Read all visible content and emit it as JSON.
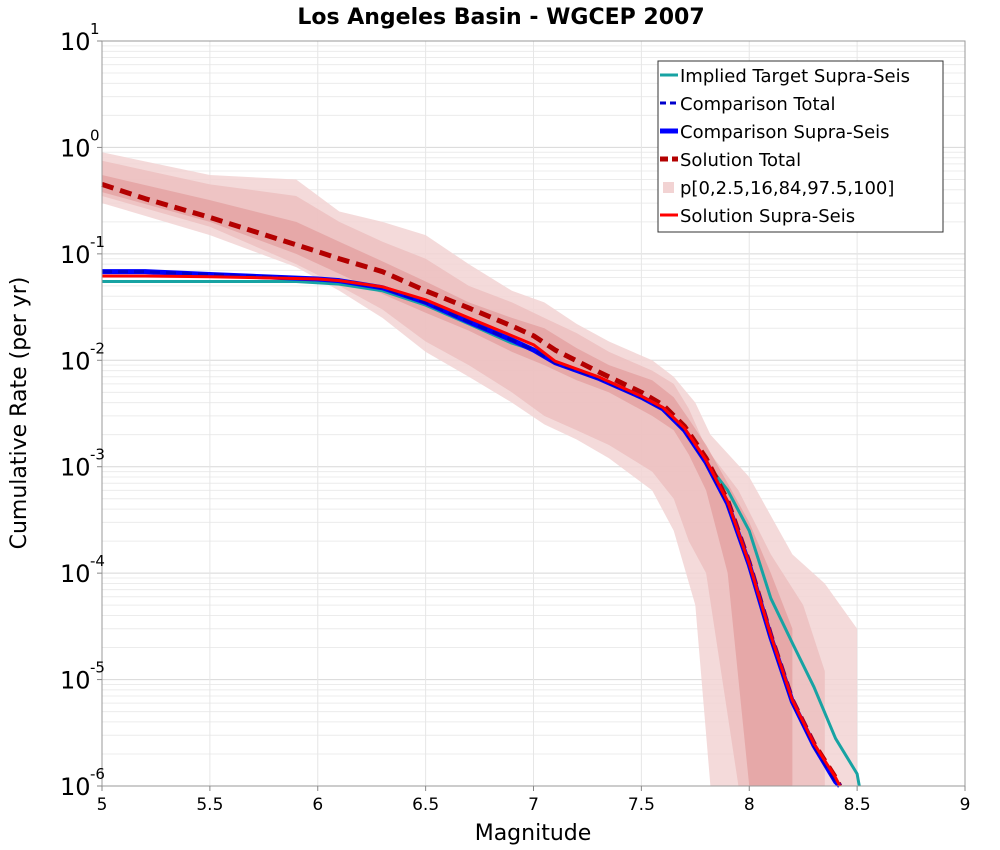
{
  "chart_data": {
    "type": "line",
    "title": "Los Angeles Basin - WGCEP 2007",
    "xlabel": "Magnitude",
    "ylabel": "Cumulative Rate (per yr)",
    "xlim": [
      5,
      9
    ],
    "ylim": [
      1e-06,
      10
    ],
    "yscale": "log",
    "grid": true,
    "legend_position": "top-right",
    "x_ticks": [
      "5",
      "5.5",
      "6",
      "6.5",
      "7",
      "7.5",
      "8",
      "8.5",
      "9"
    ],
    "y_ticks": [
      {
        "base": "10",
        "exp": "1"
      },
      {
        "base": "10",
        "exp": "0"
      },
      {
        "base": "10",
        "exp": "-1"
      },
      {
        "base": "10",
        "exp": "-2"
      },
      {
        "base": "10",
        "exp": "-3"
      },
      {
        "base": "10",
        "exp": "-4"
      },
      {
        "base": "10",
        "exp": "-5"
      },
      {
        "base": "10",
        "exp": "-6"
      }
    ],
    "bands": [
      {
        "label": "p0-p100",
        "color": "#f2d3d3",
        "points": [
          [
            5,
            0.3,
            0.9
          ],
          [
            5.5,
            0.15,
            0.55
          ],
          [
            5.9,
            0.075,
            0.5
          ],
          [
            6.1,
            0.045,
            0.25
          ],
          [
            6.3,
            0.025,
            0.2
          ],
          [
            6.5,
            0.012,
            0.15
          ],
          [
            6.7,
            0.007,
            0.08
          ],
          [
            6.9,
            0.004,
            0.045
          ],
          [
            7.05,
            0.0025,
            0.035
          ],
          [
            7.2,
            0.0018,
            0.022
          ],
          [
            7.35,
            0.0012,
            0.015
          ],
          [
            7.55,
            0.0006,
            0.01
          ],
          [
            7.65,
            0.00025,
            0.007
          ],
          [
            7.75,
            5e-05,
            0.004
          ],
          [
            7.82,
            1e-06,
            0.002
          ],
          [
            8.0,
            1e-06,
            0.0008
          ],
          [
            8.2,
            1e-06,
            0.00015
          ],
          [
            8.35,
            1e-06,
            8e-05
          ],
          [
            8.5,
            1e-06,
            3e-05
          ]
        ]
      },
      {
        "label": "p2.5-p97.5",
        "color": "#ecbfbf",
        "points": [
          [
            5,
            0.35,
            0.75
          ],
          [
            5.5,
            0.18,
            0.45
          ],
          [
            5.9,
            0.08,
            0.35
          ],
          [
            6.1,
            0.05,
            0.2
          ],
          [
            6.3,
            0.03,
            0.13
          ],
          [
            6.5,
            0.015,
            0.09
          ],
          [
            6.7,
            0.009,
            0.05
          ],
          [
            6.9,
            0.005,
            0.035
          ],
          [
            7.05,
            0.003,
            0.025
          ],
          [
            7.2,
            0.0022,
            0.018
          ],
          [
            7.35,
            0.0016,
            0.012
          ],
          [
            7.55,
            0.0009,
            0.008
          ],
          [
            7.65,
            0.0005,
            0.006
          ],
          [
            7.72,
            0.0002,
            0.0035
          ],
          [
            7.8,
            0.0001,
            0.0015
          ],
          [
            7.95,
            1e-06,
            0.0006
          ],
          [
            8.1,
            1e-06,
            0.00015
          ],
          [
            8.25,
            1e-06,
            5e-05
          ],
          [
            8.35,
            1e-06,
            1.2e-05
          ]
        ]
      },
      {
        "label": "p16-p84",
        "color": "#e4a3a3",
        "points": [
          [
            5,
            0.38,
            0.55
          ],
          [
            5.5,
            0.2,
            0.32
          ],
          [
            5.9,
            0.1,
            0.2
          ],
          [
            6.1,
            0.065,
            0.13
          ],
          [
            6.3,
            0.042,
            0.085
          ],
          [
            6.5,
            0.028,
            0.055
          ],
          [
            6.7,
            0.019,
            0.035
          ],
          [
            6.9,
            0.012,
            0.025
          ],
          [
            7.05,
            0.009,
            0.02
          ],
          [
            7.2,
            0.0065,
            0.013
          ],
          [
            7.35,
            0.005,
            0.009
          ],
          [
            7.55,
            0.003,
            0.0065
          ],
          [
            7.65,
            0.0022,
            0.0045
          ],
          [
            7.72,
            0.0013,
            0.0028
          ],
          [
            7.8,
            0.0006,
            0.0016
          ],
          [
            7.9,
            0.0001,
            0.0007
          ],
          [
            8.0,
            1e-06,
            0.0003
          ],
          [
            8.1,
            1e-06,
            0.0001
          ],
          [
            8.2,
            1e-06,
            3e-05
          ]
        ]
      }
    ],
    "series": [
      {
        "name": "Implied Target Supra-Seis",
        "color": "#17a3a3",
        "width": 3,
        "dash": "",
        "points": [
          [
            5,
            0.055
          ],
          [
            5.5,
            0.055
          ],
          [
            5.8,
            0.055
          ],
          [
            5.9,
            0.055
          ],
          [
            6.1,
            0.052
          ],
          [
            6.3,
            0.045
          ],
          [
            6.5,
            0.033
          ],
          [
            6.7,
            0.022
          ],
          [
            6.9,
            0.0145
          ],
          [
            7.0,
            0.0125
          ],
          [
            7.1,
            0.0095
          ],
          [
            7.3,
            0.007
          ],
          [
            7.5,
            0.0045
          ],
          [
            7.6,
            0.0035
          ],
          [
            7.7,
            0.0022
          ],
          [
            7.8,
            0.0011
          ],
          [
            7.9,
            0.0006
          ],
          [
            8.0,
            0.00025
          ],
          [
            8.1,
            5.8e-05
          ],
          [
            8.2,
            2.2e-05
          ],
          [
            8.3,
            8.5e-06
          ],
          [
            8.4,
            2.8e-06
          ],
          [
            8.5,
            1.3e-06
          ],
          [
            8.51,
            1e-06
          ]
        ]
      },
      {
        "name": "Comparison Total",
        "color": "#0000cc",
        "width": 3,
        "dash": "10,6",
        "points": [
          [
            5,
            0.068
          ],
          [
            5.2,
            0.068
          ],
          [
            5.5,
            0.064
          ],
          [
            6.0,
            0.058
          ],
          [
            6.1,
            0.056
          ],
          [
            6.3,
            0.048
          ],
          [
            6.5,
            0.035
          ],
          [
            6.7,
            0.023
          ],
          [
            6.9,
            0.0155
          ],
          [
            7.0,
            0.0125
          ],
          [
            7.1,
            0.0095
          ],
          [
            7.3,
            0.0068
          ],
          [
            7.5,
            0.0045
          ],
          [
            7.6,
            0.0035
          ],
          [
            7.7,
            0.0022
          ],
          [
            7.8,
            0.0011
          ],
          [
            7.9,
            0.00045
          ],
          [
            8.0,
            0.00012
          ],
          [
            8.1,
            2.5e-05
          ],
          [
            8.2,
            6.2e-06
          ],
          [
            8.3,
            2.4e-06
          ],
          [
            8.4,
            1.1e-06
          ],
          [
            8.42,
            1e-06
          ]
        ]
      },
      {
        "name": "Comparison Supra-Seis",
        "color": "#0000ff",
        "width": 5,
        "dash": "",
        "points": [
          [
            5,
            0.068
          ],
          [
            5.2,
            0.068
          ],
          [
            5.5,
            0.064
          ],
          [
            6.0,
            0.058
          ],
          [
            6.1,
            0.056
          ],
          [
            6.3,
            0.048
          ],
          [
            6.5,
            0.035
          ],
          [
            6.7,
            0.023
          ],
          [
            6.9,
            0.0155
          ],
          [
            7.0,
            0.0125
          ],
          [
            7.1,
            0.0095
          ],
          [
            7.3,
            0.0068
          ],
          [
            7.5,
            0.0045
          ],
          [
            7.6,
            0.0035
          ],
          [
            7.7,
            0.0022
          ],
          [
            7.8,
            0.0011
          ],
          [
            7.9,
            0.00045
          ],
          [
            8.0,
            0.00012
          ],
          [
            8.1,
            2.5e-05
          ],
          [
            8.2,
            6.2e-06
          ],
          [
            8.3,
            2.4e-06
          ],
          [
            8.4,
            1.1e-06
          ],
          [
            8.42,
            1e-06
          ]
        ]
      },
      {
        "name": "Solution Total",
        "color": "#b30000",
        "width": 5,
        "dash": "12,7",
        "points": [
          [
            5,
            0.45
          ],
          [
            5.2,
            0.33
          ],
          [
            5.5,
            0.22
          ],
          [
            6.0,
            0.105
          ],
          [
            6.1,
            0.09
          ],
          [
            6.3,
            0.068
          ],
          [
            6.5,
            0.045
          ],
          [
            6.7,
            0.031
          ],
          [
            6.9,
            0.021
          ],
          [
            7.0,
            0.017
          ],
          [
            7.1,
            0.0125
          ],
          [
            7.3,
            0.0078
          ],
          [
            7.5,
            0.005
          ],
          [
            7.6,
            0.0038
          ],
          [
            7.7,
            0.0024
          ],
          [
            7.8,
            0.0012
          ],
          [
            7.9,
            0.00048
          ],
          [
            8.0,
            0.000125
          ],
          [
            8.1,
            2.6e-05
          ],
          [
            8.2,
            6.4e-06
          ],
          [
            8.3,
            2.5e-06
          ],
          [
            8.4,
            1.2e-06
          ],
          [
            8.42,
            1e-06
          ]
        ]
      },
      {
        "name": "p[0,2.5,16,84,97.5,100]",
        "color": "#f2d3d3",
        "width": 8,
        "dash": "",
        "points": []
      },
      {
        "name": "Solution Supra-Seis",
        "color": "#ff0000",
        "width": 3,
        "dash": "",
        "points": [
          [
            5,
            0.062
          ],
          [
            5.2,
            0.062
          ],
          [
            5.5,
            0.061
          ],
          [
            6.0,
            0.058
          ],
          [
            6.1,
            0.056
          ],
          [
            6.3,
            0.049
          ],
          [
            6.5,
            0.037
          ],
          [
            6.7,
            0.025
          ],
          [
            6.9,
            0.017
          ],
          [
            7.0,
            0.014
          ],
          [
            7.1,
            0.0098
          ],
          [
            7.3,
            0.007
          ],
          [
            7.5,
            0.0046
          ],
          [
            7.6,
            0.0036
          ],
          [
            7.7,
            0.0023
          ],
          [
            7.8,
            0.00115
          ],
          [
            7.9,
            0.00047
          ],
          [
            8.0,
            0.000123
          ],
          [
            8.1,
            2.6e-05
          ],
          [
            8.2,
            6.4e-06
          ],
          [
            8.3,
            2.5e-06
          ],
          [
            8.4,
            1.2e-06
          ],
          [
            8.42,
            1e-06
          ]
        ]
      }
    ]
  }
}
